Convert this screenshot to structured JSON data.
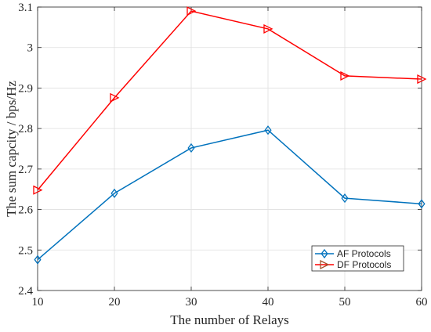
{
  "chart_data": {
    "type": "line",
    "xlabel": "The number of Relays",
    "ylabel": "The sum capcity / bps/Hz",
    "xlim": [
      10,
      60
    ],
    "ylim": [
      2.4,
      3.1
    ],
    "xticks": [
      10,
      20,
      30,
      40,
      50,
      60
    ],
    "yticks": [
      "2.4",
      "2.5",
      "2.6",
      "2.7",
      "2.8",
      "2.9",
      "3",
      "3.1"
    ],
    "grid": true,
    "legend_position": "bottom-right",
    "x": [
      10,
      20,
      30,
      40,
      50,
      60
    ],
    "series": [
      {
        "name": "AF Protocols",
        "values": [
          2.476,
          2.64,
          2.752,
          2.796,
          2.628,
          2.614
        ],
        "color": "#0072bd",
        "marker": "diamond"
      },
      {
        "name": "DF Protocols",
        "values": [
          2.648,
          2.876,
          3.09,
          3.046,
          2.93,
          2.922
        ],
        "color": "#ff0000",
        "marker": "triangle-right"
      }
    ],
    "legend_marker_colors": [
      "#0072bd",
      "#a2522a"
    ]
  }
}
